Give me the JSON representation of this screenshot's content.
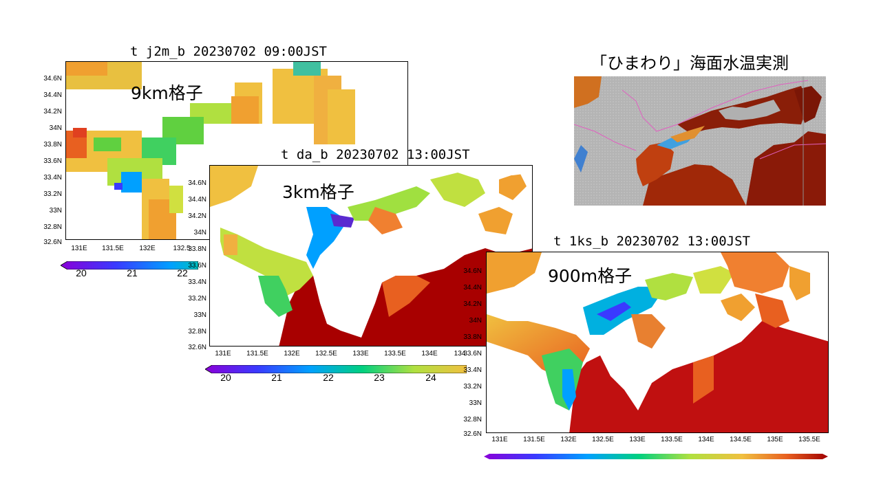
{
  "colors": {
    "ramp": [
      "#8a00d8",
      "#3a3aff",
      "#00a0ff",
      "#00d080",
      "#40e040",
      "#b0e040",
      "#f0d040",
      "#f0a030",
      "#e86020",
      "#c01010",
      "#a00000"
    ]
  },
  "panel_9km": {
    "title": "t j2m_b 20230702 09:00JST",
    "label": "9km格子",
    "lat_ticks": [
      "34.6N",
      "34.4N",
      "34.2N",
      "34N",
      "33.8N",
      "33.6N",
      "33.4N",
      "33.2N",
      "33N",
      "32.8N",
      "32.6N"
    ],
    "lon_ticks": [
      "131E",
      "131.5E",
      "132E",
      "132.5"
    ],
    "colorbar_labels": [
      "20",
      "21",
      "22"
    ]
  },
  "panel_3km": {
    "title": "t da_b 20230702 13:00JST",
    "label": "3km格子",
    "lat_ticks": [
      "34.6N",
      "34.4N",
      "34.2N",
      "34N",
      "33.8N",
      "33.6N",
      "33.4N",
      "33.2N",
      "33N",
      "32.8N",
      "32.6N"
    ],
    "lon_ticks": [
      "131E",
      "131.5E",
      "132E",
      "132.5E",
      "133E",
      "133.5E",
      "134E",
      "134"
    ],
    "colorbar_labels": [
      "20",
      "21",
      "22",
      "23",
      "24"
    ]
  },
  "panel_900m": {
    "title": "t 1ks_b 20230702 13:00JST",
    "label": "900m格子",
    "lat_ticks": [
      "34.6N",
      "34.4N",
      "34.2N",
      "34N",
      "33.8N",
      "33.6N",
      "33.4N",
      "33.2N",
      "33N",
      "32.8N",
      "32.6N"
    ],
    "lon_ticks": [
      "131E",
      "131.5E",
      "132E",
      "132.5E",
      "133E",
      "133.5E",
      "134E",
      "134.5E",
      "135E",
      "135.5E"
    ]
  },
  "himawari": {
    "title": "「ひまわり」海面水温実測"
  }
}
